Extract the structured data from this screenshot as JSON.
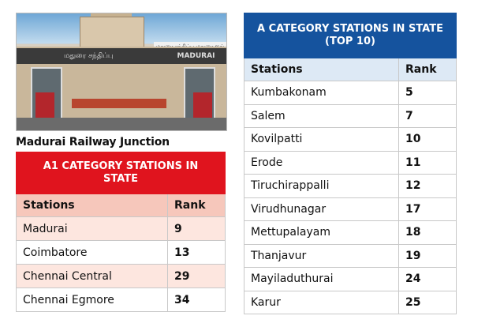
{
  "photo": {
    "sign_top": "மதுரை சந்திப்பு மதுரை ஜங்",
    "sign_band_left": "மதுரை சந்திப்பு",
    "sign_band_right": "MADURAI"
  },
  "caption": "Madurai Railway Junction",
  "table_a1": {
    "title": "A1 CATEGORY STATIONS IN STATE",
    "col_station": "Stations",
    "col_rank": "Rank",
    "rows": [
      {
        "station": "Madurai",
        "rank": "9"
      },
      {
        "station": "Coimbatore",
        "rank": "13"
      },
      {
        "station": "Chennai Central",
        "rank": "29"
      },
      {
        "station": "Chennai Egmore",
        "rank": "34"
      }
    ]
  },
  "table_a": {
    "title": "A CATEGORY STATIONS IN STATE (TOP 10)",
    "col_station": "Stations",
    "col_rank": "Rank",
    "rows": [
      {
        "station": "Kumbakonam",
        "rank": "5"
      },
      {
        "station": "Salem",
        "rank": "7"
      },
      {
        "station": "Kovilpatti",
        "rank": "10"
      },
      {
        "station": "Erode",
        "rank": "11"
      },
      {
        "station": "Tiruchirappalli",
        "rank": "12"
      },
      {
        "station": "Virudhunagar",
        "rank": "17"
      },
      {
        "station": "Mettupalayam",
        "rank": "18"
      },
      {
        "station": "Thanjavur",
        "rank": "19"
      },
      {
        "station": "Mayiladuthurai",
        "rank": "24"
      },
      {
        "station": "Karur",
        "rank": "25"
      }
    ]
  }
}
